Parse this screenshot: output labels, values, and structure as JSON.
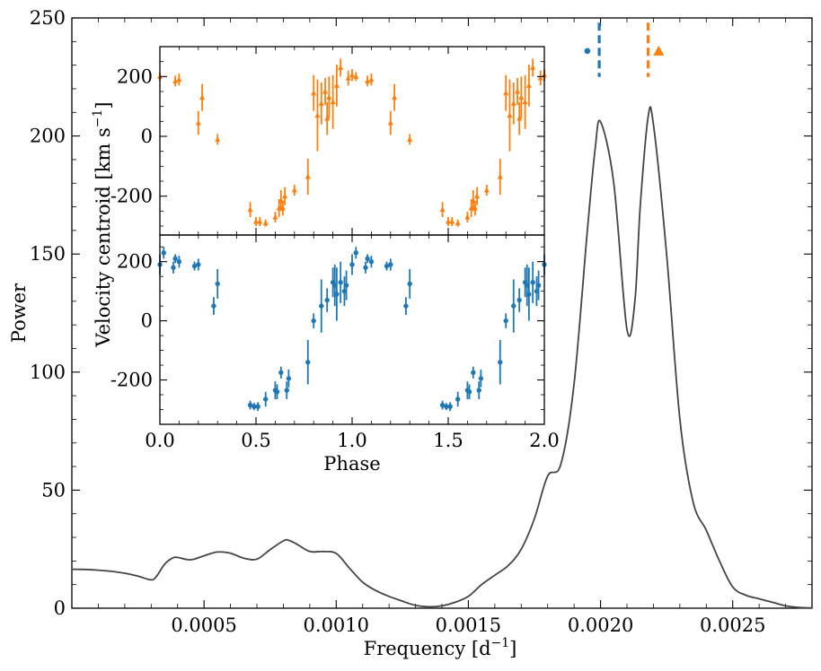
{
  "chart_data": [
    {
      "type": "line",
      "name": "periodogram",
      "xlabel": "Frequency [d",
      "xlabel_sup": "−1",
      "xlabel_end": "]",
      "ylabel": "Power",
      "xlim": [
        0.0,
        0.0028
      ],
      "ylim": [
        0,
        250
      ],
      "xticks": [
        0.0005,
        0.001,
        0.0015,
        0.002,
        0.0025
      ],
      "xtick_labels": [
        "0.0005",
        "0.0010",
        "0.0015",
        "0.0020",
        "0.0025"
      ],
      "yticks": [
        0,
        50,
        100,
        150,
        200,
        250
      ],
      "ytick_labels": [
        "0",
        "50",
        "100",
        "150",
        "200",
        "250"
      ],
      "line_color": "#444444",
      "x": [
        0.0,
        5e-05,
        0.0001,
        0.00015,
        0.0002,
        0.00025,
        0.0003,
        0.00032,
        0.00035,
        0.00038,
        0.0004,
        0.00045,
        0.0005,
        0.00055,
        0.0006,
        0.00065,
        0.0007,
        0.00075,
        0.0008,
        0.00082,
        0.00085,
        0.0009,
        0.00095,
        0.001,
        0.00105,
        0.0011,
        0.00115,
        0.0012,
        0.00125,
        0.0013,
        0.00135,
        0.0014,
        0.00145,
        0.0015,
        0.00155,
        0.0016,
        0.00165,
        0.0017,
        0.00175,
        0.0018,
        0.00185,
        0.0019,
        0.00195,
        0.00198,
        0.002,
        0.00205,
        0.0021,
        0.00213,
        0.00215,
        0.00218,
        0.0022,
        0.00225,
        0.0023,
        0.00235,
        0.0024,
        0.00245,
        0.0025,
        0.00255,
        0.0026,
        0.00265,
        0.0027,
        0.00275,
        0.0028
      ],
      "y": [
        16.5,
        16.4,
        16.1,
        15.6,
        14.8,
        13.6,
        12.0,
        13.5,
        18.5,
        21.2,
        21.5,
        20.5,
        22.2,
        23.8,
        23.3,
        21.2,
        20.8,
        24.8,
        28.5,
        28.8,
        27.2,
        24.0,
        24.0,
        23.2,
        17.0,
        11.0,
        7.5,
        5.0,
        3.0,
        1.2,
        0.6,
        1.0,
        2.5,
        5.0,
        10.0,
        14.0,
        18.0,
        25.0,
        38.0,
        56.0,
        61.0,
        95.0,
        160.0,
        195.0,
        206.0,
        180.0,
        118.0,
        130.0,
        170.0,
        208.0,
        205.0,
        150.0,
        80.0,
        45.0,
        33.0,
        20.0,
        9.0,
        5.5,
        4.0,
        2.5,
        1.0,
        0.3,
        0.1
      ],
      "annotations": [
        {
          "label": "dashed marker",
          "x": 0.001995,
          "color": "#1f77b4",
          "style": "dashed"
        },
        {
          "label": "dashed marker",
          "x": 0.00218,
          "color": "#ff7f0e",
          "style": "dashed"
        },
        {
          "label": "circle symbol",
          "x": 0.00195,
          "y": 236,
          "color": "#1f77b4"
        },
        {
          "label": "triangle symbol",
          "x": 0.00222,
          "y": 236,
          "color": "#ff7f0e"
        }
      ]
    },
    {
      "type": "scatter",
      "name": "inset-top",
      "series_name": "triangle",
      "color": "#ff7f0e",
      "ylabel": "Velocity centroid [km s",
      "ylabel_sup": "−1",
      "ylabel_end": "]",
      "xlim": [
        0,
        2
      ],
      "ylim": [
        -330,
        300
      ],
      "yticks": [
        -200,
        0,
        200
      ],
      "ytick_labels": [
        "-200",
        "0",
        "200"
      ],
      "points": [
        [
          0.0,
          200,
          15
        ],
        [
          0.08,
          185,
          18
        ],
        [
          0.1,
          190,
          20
        ],
        [
          0.2,
          45,
          40
        ],
        [
          0.22,
          130,
          45
        ],
        [
          0.3,
          -10,
          18
        ],
        [
          0.47,
          -245,
          25
        ],
        [
          0.5,
          -285,
          15
        ],
        [
          0.52,
          -285,
          15
        ],
        [
          0.55,
          -290,
          12
        ],
        [
          0.6,
          -270,
          18
        ],
        [
          0.62,
          -240,
          30
        ],
        [
          0.63,
          -215,
          35
        ],
        [
          0.64,
          -240,
          25
        ],
        [
          0.65,
          -200,
          30
        ],
        [
          0.7,
          -180,
          18
        ],
        [
          0.77,
          -135,
          60
        ],
        [
          0.8,
          145,
          60
        ],
        [
          0.82,
          70,
          120
        ],
        [
          0.84,
          110,
          70
        ],
        [
          0.86,
          150,
          45
        ],
        [
          0.87,
          60,
          55
        ],
        [
          0.88,
          130,
          70
        ],
        [
          0.9,
          115,
          90
        ],
        [
          0.92,
          170,
          70
        ],
        [
          0.94,
          230,
          30
        ],
        [
          0.98,
          195,
          25
        ],
        [
          1.0,
          205,
          20
        ],
        [
          1.02,
          200,
          15
        ],
        [
          1.08,
          185,
          18
        ],
        [
          1.1,
          190,
          20
        ],
        [
          1.2,
          45,
          40
        ],
        [
          1.22,
          130,
          45
        ],
        [
          1.3,
          -10,
          18
        ],
        [
          1.47,
          -245,
          25
        ],
        [
          1.5,
          -285,
          15
        ],
        [
          1.52,
          -285,
          15
        ],
        [
          1.55,
          -290,
          12
        ],
        [
          1.6,
          -270,
          18
        ],
        [
          1.62,
          -240,
          30
        ],
        [
          1.63,
          -215,
          35
        ],
        [
          1.64,
          -240,
          25
        ],
        [
          1.65,
          -200,
          30
        ],
        [
          1.7,
          -180,
          18
        ],
        [
          1.77,
          -135,
          60
        ],
        [
          1.8,
          145,
          60
        ],
        [
          1.82,
          70,
          120
        ],
        [
          1.84,
          110,
          70
        ],
        [
          1.86,
          150,
          45
        ],
        [
          1.87,
          60,
          55
        ],
        [
          1.88,
          130,
          70
        ],
        [
          1.9,
          115,
          90
        ],
        [
          1.92,
          170,
          70
        ],
        [
          1.94,
          230,
          30
        ],
        [
          1.98,
          195,
          25
        ],
        [
          2.0,
          205,
          20
        ]
      ]
    },
    {
      "type": "scatter",
      "name": "inset-bottom",
      "series_name": "circle",
      "color": "#1f77b4",
      "xlabel": "Phase",
      "xlim": [
        0,
        2
      ],
      "ylim": [
        -350,
        290
      ],
      "xticks": [
        0.0,
        0.5,
        1.0,
        1.5,
        2.0
      ],
      "xtick_labels": [
        "0.0",
        "0.5",
        "1.0",
        "1.5",
        "2.0"
      ],
      "yticks": [
        -200,
        0,
        200
      ],
      "ytick_labels": [
        "-200",
        "0",
        "200"
      ],
      "points": [
        [
          0.0,
          190,
          35
        ],
        [
          0.02,
          230,
          20
        ],
        [
          0.07,
          180,
          20
        ],
        [
          0.08,
          210,
          15
        ],
        [
          0.1,
          200,
          20
        ],
        [
          0.18,
          185,
          15
        ],
        [
          0.2,
          190,
          20
        ],
        [
          0.28,
          50,
          30
        ],
        [
          0.3,
          125,
          50
        ],
        [
          0.47,
          -285,
          15
        ],
        [
          0.49,
          -290,
          12
        ],
        [
          0.51,
          -290,
          15
        ],
        [
          0.55,
          -265,
          25
        ],
        [
          0.6,
          -235,
          30
        ],
        [
          0.61,
          -240,
          25
        ],
        [
          0.63,
          -175,
          20
        ],
        [
          0.66,
          -235,
          30
        ],
        [
          0.67,
          -195,
          30
        ],
        [
          0.77,
          -140,
          75
        ],
        [
          0.8,
          0,
          25
        ],
        [
          0.84,
          50,
          90
        ],
        [
          0.87,
          70,
          40
        ],
        [
          0.9,
          130,
          50
        ],
        [
          0.91,
          120,
          70
        ],
        [
          0.92,
          90,
          90
        ],
        [
          0.94,
          130,
          70
        ],
        [
          0.96,
          100,
          50
        ],
        [
          0.97,
          120,
          50
        ],
        [
          1.0,
          190,
          35
        ],
        [
          1.02,
          230,
          20
        ],
        [
          1.07,
          180,
          20
        ],
        [
          1.08,
          210,
          15
        ],
        [
          1.1,
          200,
          20
        ],
        [
          1.18,
          185,
          15
        ],
        [
          1.2,
          190,
          20
        ],
        [
          1.28,
          50,
          30
        ],
        [
          1.3,
          125,
          50
        ],
        [
          1.47,
          -285,
          15
        ],
        [
          1.49,
          -290,
          12
        ],
        [
          1.51,
          -290,
          15
        ],
        [
          1.55,
          -265,
          25
        ],
        [
          1.6,
          -235,
          30
        ],
        [
          1.61,
          -240,
          25
        ],
        [
          1.63,
          -175,
          20
        ],
        [
          1.66,
          -235,
          30
        ],
        [
          1.67,
          -195,
          30
        ],
        [
          1.77,
          -140,
          75
        ],
        [
          1.8,
          0,
          25
        ],
        [
          1.84,
          50,
          90
        ],
        [
          1.87,
          70,
          40
        ],
        [
          1.9,
          130,
          50
        ],
        [
          1.91,
          120,
          70
        ],
        [
          1.92,
          90,
          90
        ],
        [
          1.94,
          130,
          70
        ],
        [
          1.96,
          100,
          50
        ],
        [
          1.97,
          120,
          50
        ],
        [
          2.0,
          190,
          35
        ]
      ]
    }
  ]
}
